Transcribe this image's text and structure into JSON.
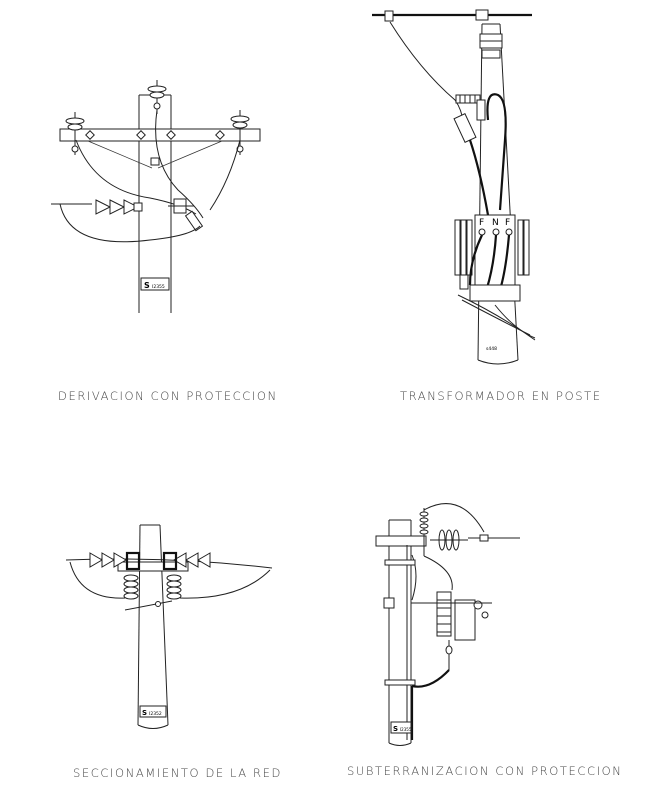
{
  "panels": [
    {
      "id": "derivacion",
      "caption": "DERIVACION CON PROTECCION",
      "pole_tag": "S",
      "pole_code": "I2355"
    },
    {
      "id": "transformador",
      "caption": "TRANSFORMADOR EN POSTE",
      "tank_labels": [
        "F",
        "N",
        "F"
      ],
      "pole_code": "s448"
    },
    {
      "id": "seccionamiento",
      "caption": "SECCIONAMIENTO DE LA RED",
      "pole_tag": "S",
      "pole_code": "I2352"
    },
    {
      "id": "subterranizacion",
      "caption": "SUBTERRANIZACION CON PROTECCION",
      "pole_tag": "S",
      "pole_code": "I2355"
    }
  ]
}
